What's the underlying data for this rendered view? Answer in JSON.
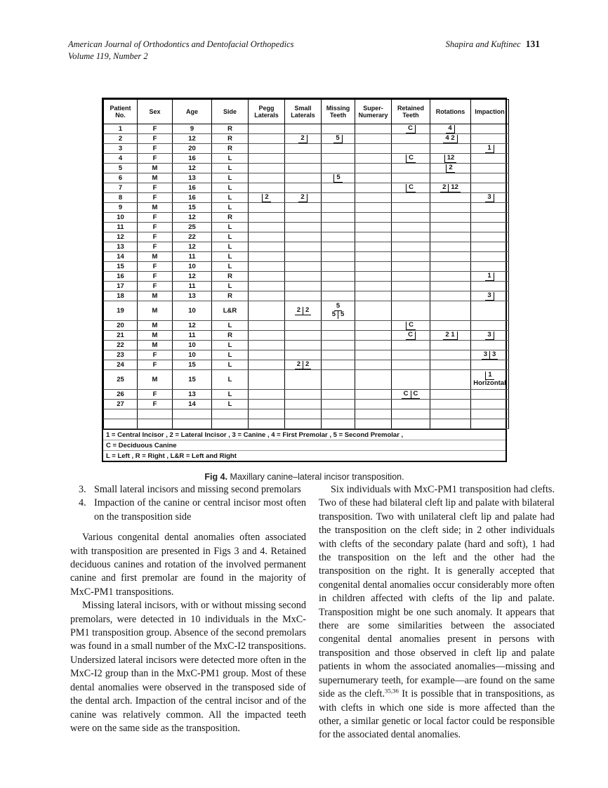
{
  "header": {
    "journal": "American Journal of Orthodontics and Dentofacial Orthopedics",
    "volume": "Volume 119, Number 2",
    "authors": "Shapira and Kuftinec",
    "page": "131"
  },
  "figure": {
    "caption_label": "Fig 4.",
    "caption_text": "Maxillary canine–lateral incisor transposition."
  },
  "table": {
    "columns": [
      "Patient\nNo.",
      "Sex",
      "Age",
      "Side",
      "Pegg\nLaterals",
      "Small\nLaterals",
      "Missing\nTeeth",
      "Super-\nNumerary",
      "Retained\nTeeth",
      "Rotations",
      "Impaction"
    ],
    "rows": [
      {
        "tall": false,
        "cells": [
          "1",
          "F",
          "9",
          "R",
          "",
          "",
          "",
          "",
          {
            "tk": [
              [
                "C",
                "r"
              ]
            ]
          },
          {
            "tk": [
              [
                "4",
                "r"
              ]
            ]
          },
          ""
        ]
      },
      {
        "tall": false,
        "cells": [
          "2",
          "F",
          "12",
          "R",
          "",
          {
            "tk": [
              [
                "2",
                "r"
              ]
            ]
          },
          {
            "tk": [
              [
                "5",
                "r"
              ]
            ]
          },
          "",
          "",
          {
            "tk": [
              [
                "4 2",
                "r"
              ]
            ]
          },
          ""
        ]
      },
      {
        "tall": false,
        "cells": [
          "3",
          "F",
          "20",
          "R",
          "",
          "",
          "",
          "",
          "",
          "",
          {
            "tk": [
              [
                "1",
                "r"
              ]
            ]
          }
        ]
      },
      {
        "tall": false,
        "cells": [
          "4",
          "F",
          "16",
          "L",
          "",
          "",
          "",
          "",
          {
            "tk": [
              [
                "C",
                "l"
              ]
            ]
          },
          {
            "tk": [
              [
                "12",
                "l"
              ]
            ]
          },
          ""
        ]
      },
      {
        "tall": false,
        "cells": [
          "5",
          "M",
          "12",
          "L",
          "",
          "",
          "",
          "",
          "",
          {
            "tk": [
              [
                "2",
                "l"
              ]
            ]
          },
          ""
        ]
      },
      {
        "tall": false,
        "cells": [
          "6",
          "M",
          "13",
          "L",
          "",
          "",
          {
            "tk": [
              [
                "5",
                "l"
              ]
            ]
          },
          "",
          "",
          "",
          ""
        ]
      },
      {
        "tall": false,
        "cells": [
          "7",
          "F",
          "16",
          "L",
          "",
          "",
          "",
          "",
          {
            "tk": [
              [
                "C",
                "l"
              ]
            ]
          },
          {
            "tk": [
              [
                "2",
                "r"
              ],
              [
                "12",
                "b"
              ]
            ]
          },
          ""
        ]
      },
      {
        "tall": false,
        "cells": [
          "8",
          "F",
          "16",
          "L",
          {
            "tk": [
              [
                "2",
                "l"
              ]
            ]
          },
          {
            "tk": [
              [
                "2",
                "r"
              ]
            ]
          },
          "",
          "",
          "",
          "",
          {
            "tk": [
              [
                "3",
                "r"
              ]
            ]
          }
        ]
      },
      {
        "tall": false,
        "cells": [
          "9",
          "M",
          "15",
          "L",
          "",
          "",
          "",
          "",
          "",
          "",
          ""
        ]
      },
      {
        "tall": false,
        "cells": [
          "10",
          "F",
          "12",
          "R",
          "",
          "",
          "",
          "",
          "",
          "",
          ""
        ]
      },
      {
        "tall": false,
        "cells": [
          "11",
          "F",
          "25",
          "L",
          "",
          "",
          "",
          "",
          "",
          "",
          ""
        ]
      },
      {
        "tall": false,
        "cells": [
          "12",
          "F",
          "22",
          "L",
          "",
          "",
          "",
          "",
          "",
          "",
          ""
        ]
      },
      {
        "tall": false,
        "cells": [
          "13",
          "F",
          "12",
          "L",
          "",
          "",
          "",
          "",
          "",
          "",
          ""
        ]
      },
      {
        "tall": false,
        "cells": [
          "14",
          "M",
          "11",
          "L",
          "",
          "",
          "",
          "",
          "",
          "",
          ""
        ]
      },
      {
        "tall": false,
        "cells": [
          "15",
          "F",
          "10",
          "L",
          "",
          "",
          "",
          "",
          "",
          "",
          ""
        ]
      },
      {
        "tall": false,
        "cells": [
          "16",
          "F",
          "12",
          "R",
          "",
          "",
          "",
          "",
          "",
          "",
          {
            "tk": [
              [
                "1",
                "r"
              ]
            ]
          }
        ]
      },
      {
        "tall": false,
        "cells": [
          "17",
          "F",
          "11",
          "L",
          "",
          "",
          "",
          "",
          "",
          "",
          ""
        ]
      },
      {
        "tall": false,
        "cells": [
          "18",
          "M",
          "13",
          "R",
          "",
          "",
          "",
          "",
          "",
          "",
          {
            "tk": [
              [
                "3",
                "r"
              ]
            ]
          }
        ]
      },
      {
        "tall": true,
        "cells": [
          "19",
          "M",
          "10",
          "L&R",
          "",
          {
            "tk": [
              [
                "2",
                "r"
              ],
              [
                "2",
                "b"
              ]
            ]
          },
          {
            "top": {
              "tk": [
                [
                  "5",
                  "b"
                ]
              ]
            },
            "bottom": {
              "tk": [
                [
                  "5",
                  "v"
                ],
                [
                  "5",
                  "p"
                ]
              ]
            }
          },
          "",
          "",
          "",
          ""
        ]
      },
      {
        "tall": false,
        "cells": [
          "20",
          "M",
          "12",
          "L",
          "",
          "",
          "",
          "",
          {
            "tk": [
              [
                "C",
                "l"
              ]
            ]
          },
          "",
          ""
        ]
      },
      {
        "tall": false,
        "cells": [
          "21",
          "M",
          "11",
          "R",
          "",
          "",
          "",
          "",
          {
            "tk": [
              [
                "C",
                "r"
              ]
            ]
          },
          {
            "tk": [
              [
                "2 1",
                "r"
              ]
            ]
          },
          {
            "tk": [
              [
                "3",
                "r"
              ]
            ]
          }
        ]
      },
      {
        "tall": false,
        "cells": [
          "22",
          "M",
          "10",
          "L",
          "",
          "",
          "",
          "",
          "",
          "",
          ""
        ]
      },
      {
        "tall": false,
        "cells": [
          "23",
          "F",
          "10",
          "L",
          "",
          "",
          "",
          "",
          "",
          "",
          {
            "tk": [
              [
                "3",
                "r"
              ],
              [
                "3",
                "b"
              ]
            ]
          }
        ]
      },
      {
        "tall": false,
        "cells": [
          "24",
          "F",
          "15",
          "L",
          "",
          {
            "tk": [
              [
                "2",
                "r"
              ],
              [
                "2",
                "b"
              ]
            ]
          },
          "",
          "",
          "",
          "",
          ""
        ]
      },
      {
        "tall": true,
        "cells": [
          "25",
          "M",
          "15",
          "L",
          "",
          "",
          "",
          "",
          "",
          "",
          {
            "top": {
              "tk": [
                [
                  "1",
                  "l"
                ]
              ]
            },
            "bottom": "Horizontal"
          }
        ]
      },
      {
        "tall": false,
        "cells": [
          "26",
          "F",
          "13",
          "L",
          "",
          "",
          "",
          "",
          {
            "tk": [
              [
                "C",
                "r"
              ],
              [
                "C",
                "b"
              ]
            ]
          },
          "",
          ""
        ]
      },
      {
        "tall": false,
        "cells": [
          "27",
          "F",
          "14",
          "L",
          "",
          "",
          "",
          "",
          "",
          "",
          ""
        ]
      }
    ],
    "notes": [
      "1 = Central Incisor , 2 = Lateral Incisor , 3 = Canine , 4 = First Premolar , 5 = Second Premolar ,",
      "C = Deciduous Canine",
      "L = Left , R = Right , L&R = Left and Right"
    ]
  },
  "body": {
    "left": {
      "list": [
        {
          "n": "3.",
          "t": "Small lateral incisors and missing second premolars"
        },
        {
          "n": "4.",
          "t": "Impaction of the canine or central incisor most often on the transposition side"
        }
      ],
      "p1": "Various congenital dental anomalies often associated with transposition are presented in Figs 3 and 4. Retained deciduous canines and rotation of the involved permanent canine and first premolar are found in the majority of MxC-PM1 transpositions.",
      "p2": "Missing lateral incisors, with or without missing second premolars, were detected in 10 individuals in the MxC-PM1 transposition group. Absence of the second premolars was found in a small number of the MxC-I2 transpositions. Undersized lateral incisors were detected more often in the MxC-I2 group than in the MxC-PM1 group. Most of these dental anomalies were observed in the transposed side of the dental arch. Impaction of the central incisor and of the canine was relatively common. All the impacted teeth were on the same side as the transposition."
    },
    "right": {
      "p1a": "Six individuals with MxC-PM1 transposition had clefts. Two of these had bilateral cleft lip and palate with bilateral transposition. Two with unilateral cleft lip and palate had the transposition on the cleft side; in 2 other individuals with clefts of the secondary palate (hard and soft), 1 had the transposition on the left and the other had the transposition on the right. It is generally accepted that congenital dental anomalies occur considerably more often in children affected with clefts of the lip and palate. Transposition might be one such anomaly. It appears that there are some similarities between the associated congenital dental anomalies present in persons with transposition and those observed in cleft lip and palate patients in whom the associated anomalies—missing and supernumerary teeth, for example—are found on the same side as the cleft.",
      "sup": "35,36",
      "p1b": " It is possible that in transpositions, as with clefts in which one side is more affected than the other, a similar genetic or local factor could be responsible for the associated dental anomalies."
    }
  }
}
